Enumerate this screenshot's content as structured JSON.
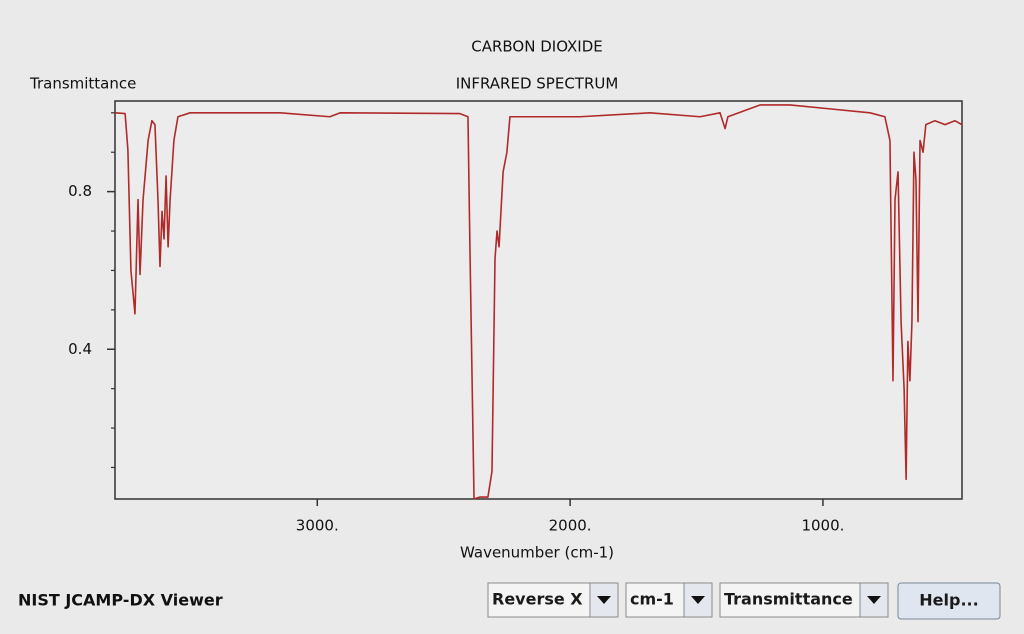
{
  "chart_data": {
    "type": "line",
    "title": "CARBON DIOXIDE",
    "subtitle": "INFRARED SPECTRUM",
    "xlabel": "Wavenumber (cm-1)",
    "ylabel": "Transmittance",
    "color": "#b02a2a",
    "x": [
      3800,
      3760,
      3749,
      3737,
      3721,
      3709,
      3701,
      3689,
      3669,
      3654,
      3642,
      3630,
      3622,
      3614,
      3606,
      3598,
      3590,
      3582,
      3567,
      3551,
      3503,
      3147,
      2950,
      2910,
      2436,
      2404,
      2396,
      2380,
      2356,
      2325,
      2309,
      2297,
      2289,
      2281,
      2265,
      2250,
      2238,
      2198,
      1961,
      1684,
      1486,
      1407,
      1387,
      1376,
      1249,
      1130,
      972,
      814,
      755,
      735,
      723,
      715,
      703,
      691,
      679,
      671,
      664,
      656,
      648,
      640,
      632,
      624,
      616,
      604,
      593,
      557,
      517,
      478,
      450
    ],
    "values": [
      1.0,
      0.998,
      0.906,
      0.6,
      0.49,
      0.78,
      0.59,
      0.78,
      0.93,
      0.98,
      0.97,
      0.78,
      0.61,
      0.75,
      0.68,
      0.84,
      0.66,
      0.78,
      0.93,
      0.99,
      1.0,
      1.0,
      0.99,
      1.0,
      0.998,
      0.99,
      0.65,
      0.02,
      0.025,
      0.025,
      0.09,
      0.63,
      0.7,
      0.66,
      0.85,
      0.9,
      0.99,
      0.99,
      0.99,
      1.0,
      0.99,
      1.0,
      0.96,
      0.99,
      1.02,
      1.02,
      1.01,
      1.0,
      0.99,
      0.93,
      0.32,
      0.78,
      0.85,
      0.47,
      0.3,
      0.07,
      0.42,
      0.32,
      0.47,
      0.9,
      0.83,
      0.47,
      0.93,
      0.9,
      0.97,
      0.98,
      0.97,
      0.98,
      0.97
    ],
    "xlim": [
      3800,
      450
    ],
    "ylim": [
      0.02,
      1.03
    ],
    "xticks": [
      {
        "value": 3000,
        "label": "3000."
      },
      {
        "value": 2000,
        "label": "2000."
      },
      {
        "value": 1000,
        "label": "1000."
      }
    ],
    "yticks": [
      0.8,
      0.4
    ],
    "yminorticks": [
      1.0,
      0.9,
      0.7,
      0.6,
      0.5,
      0.3,
      0.2,
      0.1
    ]
  },
  "ui": {
    "app_name": "NIST JCAMP-DX Viewer",
    "dropdowns": [
      "Reverse X",
      "cm-1",
      "Transmittance"
    ],
    "button": "Help..."
  }
}
